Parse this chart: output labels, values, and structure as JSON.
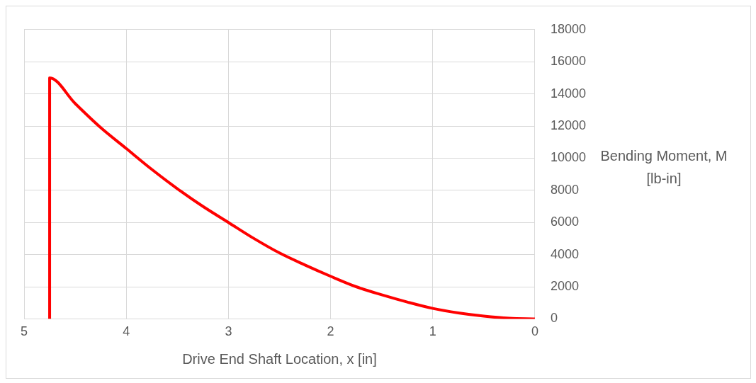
{
  "chart_data": {
    "type": "line",
    "xlabel": "Drive End Shaft Location, x [in]",
    "ylabel": "Bending Moment, M [lb-in]",
    "series": [
      {
        "color": "#ff0000",
        "x": [
          4.75,
          4.75,
          4.5,
          4.25,
          4,
          3.75,
          3.5,
          3.25,
          3,
          2.75,
          2.5,
          2.25,
          2,
          1.75,
          1.5,
          1.25,
          1,
          0.75,
          0.5,
          0.25,
          0
        ],
        "values": [
          0,
          15000,
          13400,
          11900,
          10600,
          9300,
          8100,
          7000,
          6000,
          5000,
          4100,
          3350,
          2650,
          2000,
          1500,
          1050,
          650,
          370,
          170,
          40,
          0
        ]
      }
    ],
    "xlim": [
      5,
      0
    ],
    "xticks": [
      5,
      4,
      3,
      2,
      1,
      0
    ],
    "ylim": [
      0,
      18000
    ],
    "yticks": [
      0,
      2000,
      4000,
      6000,
      8000,
      10000,
      12000,
      14000,
      16000,
      18000
    ],
    "grid": true,
    "legend": false,
    "marker": "none",
    "line_style": "solid"
  }
}
